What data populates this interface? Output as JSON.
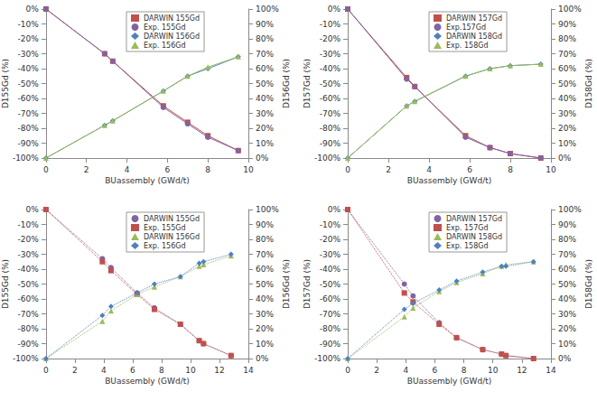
{
  "chart_data": [
    {
      "type": "line",
      "xlabel": "BUassembly (GWd/t)",
      "ylabel": "D155Gd (%)",
      "y2label": "D156Gd (%)",
      "x": [
        0,
        2.9,
        3.3,
        5.8,
        7,
        8,
        9.5
      ],
      "series": [
        {
          "name": "DARWIN 155Gd",
          "color": "#c0504d",
          "marker": "square",
          "values": [
            0,
            -30,
            -35,
            -65,
            -76,
            -85,
            -95
          ]
        },
        {
          "name": "Exp. 155Gd",
          "color": "#8064a2",
          "marker": "circle",
          "values": [
            0,
            -30,
            -35,
            -66,
            -77,
            -86,
            -95
          ]
        },
        {
          "name": "DARWIN 156Gd",
          "color": "#4f81bd",
          "marker": "diamond",
          "axis": "y2",
          "values": [
            0,
            22,
            25,
            45,
            55,
            60,
            68
          ]
        },
        {
          "name": "Exp. 156Gd",
          "color": "#9bbb59",
          "marker": "triangle",
          "axis": "y2",
          "values": [
            0,
            22,
            25,
            45,
            55,
            61,
            68
          ]
        }
      ],
      "xlim": [
        0,
        10
      ],
      "xticks": [
        0,
        2,
        4,
        6,
        8,
        10
      ],
      "ylim": [
        -100,
        0
      ],
      "yticks": [
        {
          "value": -100,
          "label": "-100%"
        },
        {
          "value": -90,
          "label": "-90%"
        },
        {
          "value": -80,
          "label": "-80%"
        },
        {
          "value": -70,
          "label": "-70%"
        },
        {
          "value": -60,
          "label": "-60%"
        },
        {
          "value": -50,
          "label": "-50%"
        },
        {
          "value": -40,
          "label": "-40%"
        },
        {
          "value": -30,
          "label": "-30%"
        },
        {
          "value": -20,
          "label": "-20%"
        },
        {
          "value": -10,
          "label": "-10%"
        },
        {
          "value": 0,
          "label": "0%"
        }
      ],
      "y2lim": [
        0,
        100
      ],
      "y2ticks": [
        {
          "value": 0,
          "label": "0%"
        },
        {
          "value": 10,
          "label": "10%"
        },
        {
          "value": 20,
          "label": "20%"
        },
        {
          "value": 30,
          "label": "30%"
        },
        {
          "value": 40,
          "label": "40%"
        },
        {
          "value": 50,
          "label": "50%"
        },
        {
          "value": 60,
          "label": "60%"
        },
        {
          "value": 70,
          "label": "70%"
        },
        {
          "value": 80,
          "label": "80%"
        },
        {
          "value": 90,
          "label": "90%"
        },
        {
          "value": 100,
          "label": "100%"
        }
      ],
      "line_style": "solid",
      "grid": false,
      "legend": "upper center"
    },
    {
      "type": "line",
      "xlabel": "BUassembly (GWd/t)",
      "ylabel": "D157Gd (%)",
      "y2label": "D158Gd (%)",
      "x": [
        0,
        2.9,
        3.3,
        5.8,
        7,
        8,
        9.5
      ],
      "series": [
        {
          "name": "DARWIN 157Gd",
          "color": "#c0504d",
          "marker": "square",
          "values": [
            0,
            -46,
            -52,
            -85,
            -93,
            -97,
            -100
          ]
        },
        {
          "name": "Exp.157Gd",
          "color": "#8064a2",
          "marker": "circle",
          "values": [
            0,
            -47,
            -52,
            -86,
            -93,
            -97,
            -100
          ]
        },
        {
          "name": "DARWIN 158Gd",
          "color": "#4f81bd",
          "marker": "diamond",
          "axis": "y2",
          "values": [
            0,
            35,
            38,
            55,
            60,
            62,
            63
          ]
        },
        {
          "name": "Exp. 158Gd",
          "color": "#9bbb59",
          "marker": "triangle",
          "axis": "y2",
          "values": [
            0,
            35,
            38,
            55,
            60,
            62,
            63
          ]
        }
      ],
      "xlim": [
        0,
        10
      ],
      "xticks": [
        0,
        2,
        4,
        6,
        8,
        10
      ],
      "ylim": [
        -100,
        0
      ],
      "yticks": [
        {
          "value": -100,
          "label": "-100%"
        },
        {
          "value": -90,
          "label": "-90%"
        },
        {
          "value": -80,
          "label": "-80%"
        },
        {
          "value": -70,
          "label": "-70%"
        },
        {
          "value": -60,
          "label": "-60%"
        },
        {
          "value": -50,
          "label": "-50%"
        },
        {
          "value": -40,
          "label": "-40%"
        },
        {
          "value": -30,
          "label": "-30%"
        },
        {
          "value": -20,
          "label": "-20%"
        },
        {
          "value": -10,
          "label": "-10%"
        },
        {
          "value": 0,
          "label": "0%"
        }
      ],
      "y2lim": [
        0,
        100
      ],
      "y2ticks": [
        {
          "value": 0,
          "label": "0%"
        },
        {
          "value": 10,
          "label": "10%"
        },
        {
          "value": 20,
          "label": "20%"
        },
        {
          "value": 30,
          "label": "30%"
        },
        {
          "value": 40,
          "label": "40%"
        },
        {
          "value": 50,
          "label": "50%"
        },
        {
          "value": 60,
          "label": "60%"
        },
        {
          "value": 70,
          "label": "70%"
        },
        {
          "value": 80,
          "label": "80%"
        },
        {
          "value": 90,
          "label": "90%"
        },
        {
          "value": 100,
          "label": "100%"
        }
      ],
      "line_style": "solid",
      "grid": false,
      "legend": "upper center"
    },
    {
      "type": "line",
      "xlabel": "BUassembly (GWd/t)",
      "ylabel": "D155Gd (%)",
      "y2label": "D156Gd (%)",
      "x": [
        0,
        3.9,
        4.5,
        6.3,
        7.5,
        9.3,
        10.6,
        10.9,
        12.8
      ],
      "series": [
        {
          "name": "DARWIN 155Gd",
          "color": "#8064a2",
          "marker": "circle",
          "values": [
            0,
            -33,
            -39,
            -56,
            -66,
            -77,
            -88,
            -90,
            -98
          ]
        },
        {
          "name": "Exp. 155Gd",
          "color": "#c0504d",
          "marker": "square",
          "values": [
            0,
            -35,
            -41,
            -57,
            -67,
            -77,
            -88,
            -90,
            -98
          ]
        },
        {
          "name": "DARWIN 156Gd",
          "color": "#9bbb59",
          "marker": "triangle",
          "axis": "y2",
          "values": [
            0,
            25,
            32,
            43,
            48,
            55,
            62,
            63,
            69
          ]
        },
        {
          "name": "Exp. 156Gd",
          "color": "#4f81bd",
          "marker": "diamond",
          "axis": "y2",
          "values": [
            0,
            29,
            35,
            44,
            50,
            55,
            64,
            65,
            70
          ]
        }
      ],
      "xlim": [
        0,
        14
      ],
      "xticks": [
        0,
        2,
        4,
        6,
        8,
        10,
        12,
        14
      ],
      "ylim": [
        -100,
        0
      ],
      "yticks": [
        {
          "value": -100,
          "label": "-100%"
        },
        {
          "value": -90,
          "label": "-90%"
        },
        {
          "value": -80,
          "label": "-80%"
        },
        {
          "value": -70,
          "label": "-70%"
        },
        {
          "value": -60,
          "label": "-60%"
        },
        {
          "value": -50,
          "label": "-50%"
        },
        {
          "value": -40,
          "label": "-40%"
        },
        {
          "value": -30,
          "label": "-30%"
        },
        {
          "value": -20,
          "label": "-20%"
        },
        {
          "value": -10,
          "label": "-10%"
        },
        {
          "value": 0,
          "label": "0%"
        }
      ],
      "y2lim": [
        0,
        100
      ],
      "y2ticks": [
        {
          "value": 0,
          "label": "0%"
        },
        {
          "value": 10,
          "label": "10%"
        },
        {
          "value": 20,
          "label": "20%"
        },
        {
          "value": 30,
          "label": "30%"
        },
        {
          "value": 40,
          "label": "40%"
        },
        {
          "value": 50,
          "label": "50%"
        },
        {
          "value": 60,
          "label": "60%"
        },
        {
          "value": 70,
          "label": "70%"
        },
        {
          "value": 80,
          "label": "80%"
        },
        {
          "value": 90,
          "label": "90%"
        },
        {
          "value": 100,
          "label": "100%"
        }
      ],
      "line_style": "dotted",
      "grid": false,
      "legend": "upper center"
    },
    {
      "type": "line",
      "xlabel": "BUassembly (GWd/t)",
      "ylabel": "D157Gd (%)",
      "y2label": "D158Gd (%)",
      "x": [
        0,
        3.9,
        4.5,
        6.3,
        7.5,
        9.3,
        10.6,
        10.9,
        12.8
      ],
      "series": [
        {
          "name": "DARWIN 157Gd",
          "color": "#8064a2",
          "marker": "circle",
          "values": [
            0,
            -50,
            -58,
            -76,
            -86,
            -94,
            -97,
            -98,
            -100
          ]
        },
        {
          "name": "Exp. 157Gd",
          "color": "#c0504d",
          "marker": "square",
          "values": [
            0,
            -56,
            -62,
            -77,
            -86,
            -94,
            -97,
            -98,
            -100
          ]
        },
        {
          "name": "DARWIN 158Gd",
          "color": "#9bbb59",
          "marker": "triangle",
          "axis": "y2",
          "values": [
            0,
            28,
            34,
            45,
            51,
            57,
            62,
            63,
            65
          ]
        },
        {
          "name": "Exp. 158Gd",
          "color": "#4f81bd",
          "marker": "diamond",
          "axis": "y2",
          "values": [
            0,
            33,
            37,
            46,
            52,
            58,
            62,
            62,
            65
          ]
        }
      ],
      "xlim": [
        0,
        14
      ],
      "xticks": [
        0,
        2,
        4,
        6,
        8,
        10,
        12,
        14
      ],
      "ylim": [
        -100,
        0
      ],
      "yticks": [
        {
          "value": -100,
          "label": "-100%"
        },
        {
          "value": -90,
          "label": "-90%"
        },
        {
          "value": -80,
          "label": "-80%"
        },
        {
          "value": -70,
          "label": "-70%"
        },
        {
          "value": -60,
          "label": "-60%"
        },
        {
          "value": -50,
          "label": "-50%"
        },
        {
          "value": -40,
          "label": "-40%"
        },
        {
          "value": -30,
          "label": "-30%"
        },
        {
          "value": -20,
          "label": "-20%"
        },
        {
          "value": -10,
          "label": "-10%"
        },
        {
          "value": 0,
          "label": "0%"
        }
      ],
      "y2lim": [
        0,
        100
      ],
      "y2ticks": [
        {
          "value": 0,
          "label": "0%"
        },
        {
          "value": 10,
          "label": "10%"
        },
        {
          "value": 20,
          "label": "20%"
        },
        {
          "value": 30,
          "label": "30%"
        },
        {
          "value": 40,
          "label": "40%"
        },
        {
          "value": 50,
          "label": "50%"
        },
        {
          "value": 60,
          "label": "60%"
        },
        {
          "value": 70,
          "label": "70%"
        },
        {
          "value": 80,
          "label": "80%"
        },
        {
          "value": 90,
          "label": "90%"
        },
        {
          "value": 100,
          "label": "100%"
        }
      ],
      "line_style": "dotted",
      "grid": false,
      "legend": "upper center"
    }
  ]
}
